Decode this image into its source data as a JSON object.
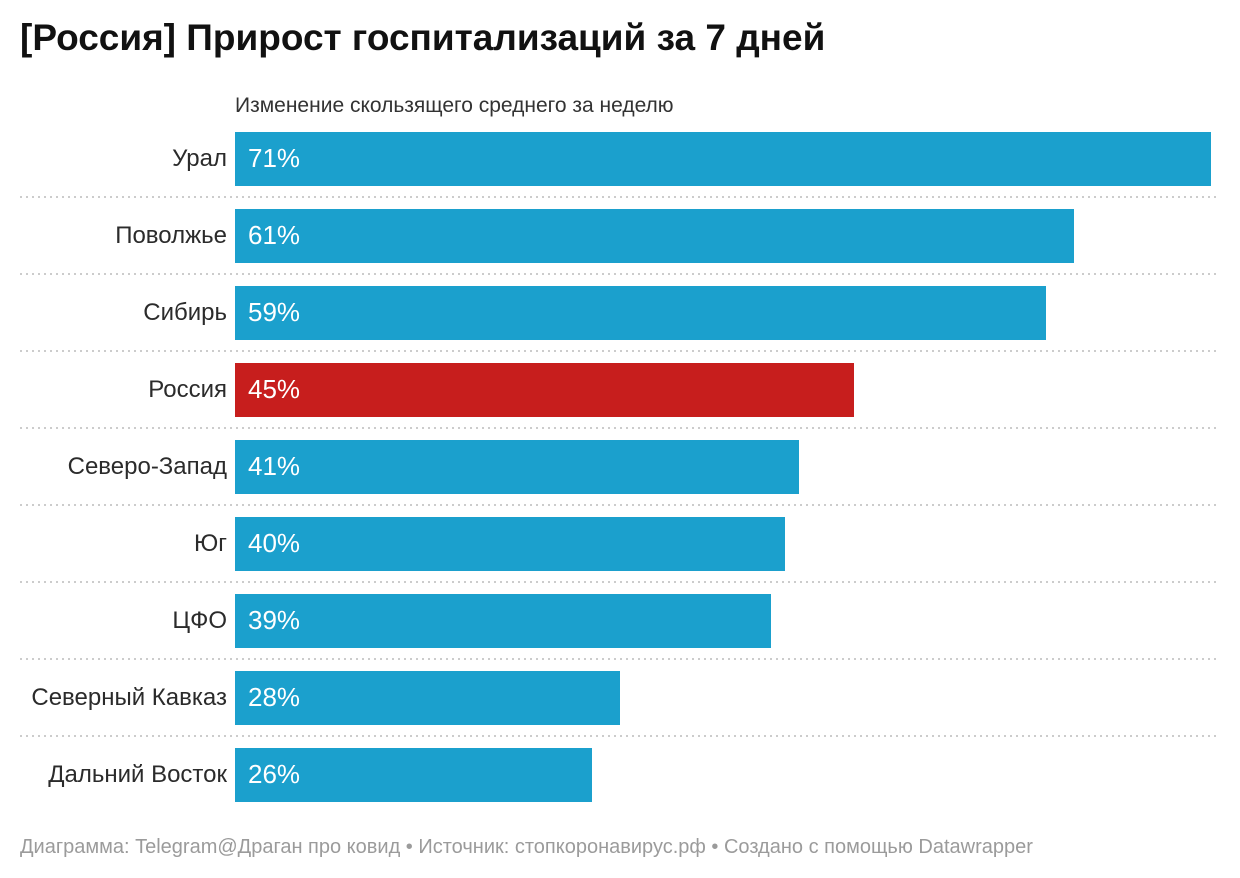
{
  "header": {
    "title": "[Россия] Прирост госпитализаций за 7 дней",
    "subtitle": "Изменение скользящего среднего за неделю"
  },
  "footer": {
    "text": "Диаграмма: Telegram@Драган про ковид • Источник: стопкоронавирус.рф • Создано с помощью Datawrapper"
  },
  "colors": {
    "bar": "#1ba0cd",
    "highlight": "#c71e1d",
    "separator": "#cccccc",
    "title_text": "#111111",
    "category_text": "#2b2b2b",
    "value_text": "#ffffff",
    "footer_text": "#9b9b9b"
  },
  "chart_data": {
    "type": "bar",
    "orientation": "horizontal",
    "title": "[Россия] Прирост госпитализаций за 7 дней",
    "subtitle": "Изменение скользящего среднего за неделю",
    "categories": [
      "Урал",
      "Поволжье",
      "Сибирь",
      "Россия",
      "Северо-Запад",
      "Юг",
      "ЦФО",
      "Северный Кавказ",
      "Дальний Восток"
    ],
    "values": [
      71,
      61,
      59,
      45,
      41,
      40,
      39,
      28,
      26
    ],
    "unit": "%",
    "value_labels": [
      "71%",
      "61%",
      "59%",
      "45%",
      "41%",
      "40%",
      "39%",
      "28%",
      "26%"
    ],
    "xlim": [
      0,
      71
    ],
    "highlight_category": "Россия",
    "grid": false,
    "legend": "none",
    "value_label_position": "inside-left",
    "row_separators": "dotted"
  }
}
